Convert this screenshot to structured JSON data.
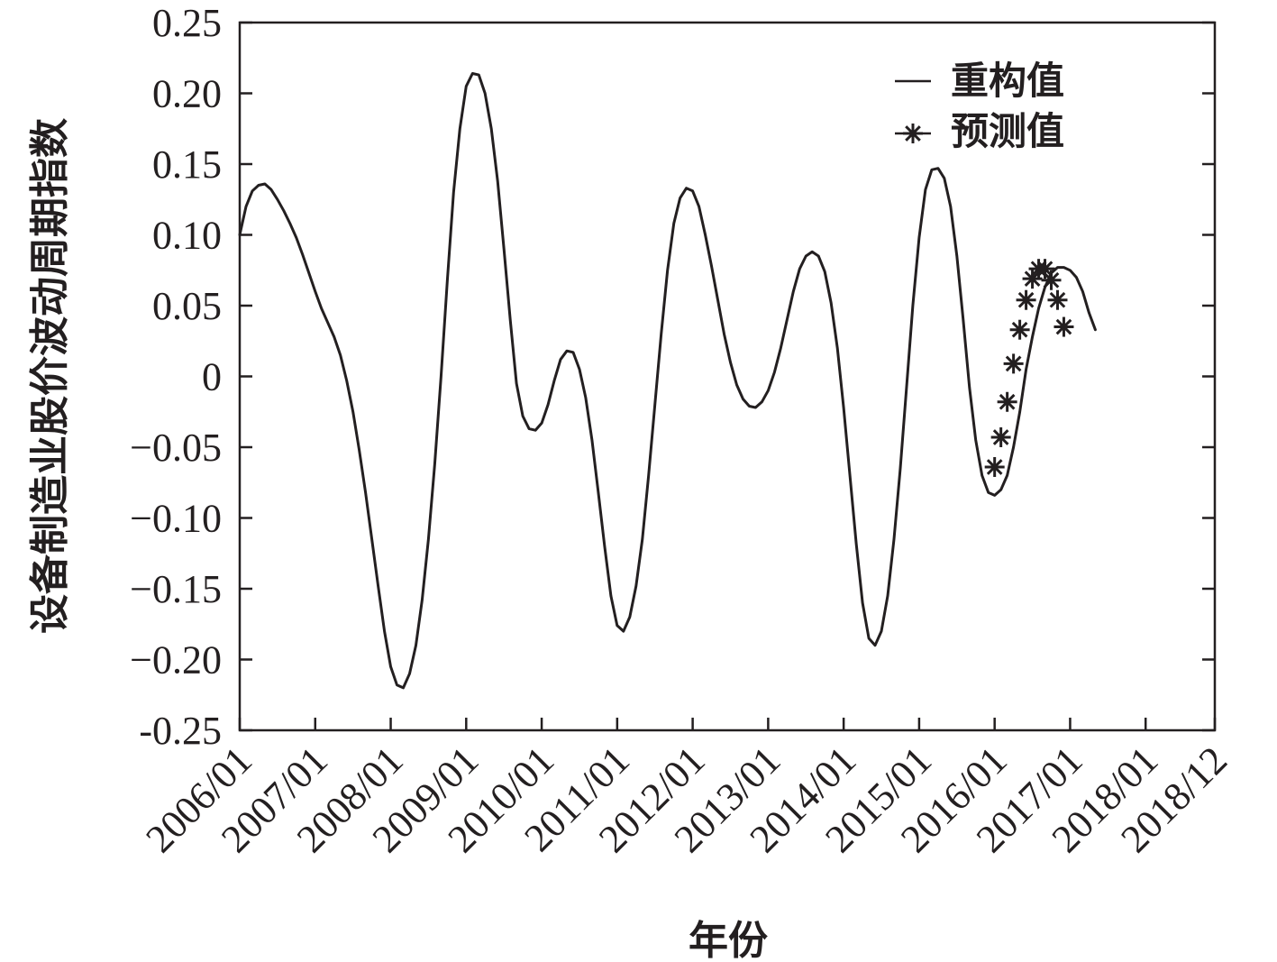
{
  "chart_data": {
    "type": "line",
    "xlabel": "年份",
    "ylabel": "设备制造业股价波动周期指数",
    "xlim": [
      "2006/01",
      "2018/12"
    ],
    "ylim": [
      -0.25,
      0.25
    ],
    "yticks": [
      0.25,
      0.2,
      0.15,
      0.1,
      0.05,
      0,
      -0.05,
      -0.1,
      -0.15,
      -0.2,
      -0.25
    ],
    "ytick_labels": [
      "0.25",
      "0.20",
      "0.15",
      "0.10",
      "0.05",
      "0",
      "−0.05",
      "−0.10",
      "−0.15",
      "−0.20",
      "-0.25"
    ],
    "xtick_labels": [
      "2006/01",
      "2007/01",
      "2008/01",
      "2009/01",
      "2010/01",
      "2011/01",
      "2012/01",
      "2013/01",
      "2014/01",
      "2015/01",
      "2016/01",
      "2017/01",
      "2018/01",
      "2018/12"
    ],
    "grid": false,
    "legend": {
      "position": "top-right",
      "entries": [
        "重构值",
        "预测值"
      ]
    },
    "series": [
      {
        "name": "重构值",
        "style": "line",
        "points": [
          [
            "2006/01",
            0.1
          ],
          [
            "2006/02",
            0.12
          ],
          [
            "2006/03",
            0.131
          ],
          [
            "2006/04",
            0.135
          ],
          [
            "2006/05",
            0.136
          ],
          [
            "2006/06",
            0.132
          ],
          [
            "2006/07",
            0.125
          ],
          [
            "2006/08",
            0.117
          ],
          [
            "2006/09",
            0.108
          ],
          [
            "2006/10",
            0.098
          ],
          [
            "2006/11",
            0.086
          ],
          [
            "2006/12",
            0.073
          ],
          [
            "2007/01",
            0.06
          ],
          [
            "2007/02",
            0.048
          ],
          [
            "2007/03",
            0.038
          ],
          [
            "2007/04",
            0.028
          ],
          [
            "2007/05",
            0.015
          ],
          [
            "2007/06",
            -0.003
          ],
          [
            "2007/07",
            -0.025
          ],
          [
            "2007/08",
            -0.052
          ],
          [
            "2007/09",
            -0.082
          ],
          [
            "2007/10",
            -0.115
          ],
          [
            "2007/11",
            -0.148
          ],
          [
            "2007/12",
            -0.18
          ],
          [
            "2008/01",
            -0.205
          ],
          [
            "2008/02",
            -0.218
          ],
          [
            "2008/03",
            -0.22
          ],
          [
            "2008/04",
            -0.21
          ],
          [
            "2008/05",
            -0.19
          ],
          [
            "2008/06",
            -0.158
          ],
          [
            "2008/07",
            -0.115
          ],
          [
            "2008/08",
            -0.062
          ],
          [
            "2008/09",
            0.0
          ],
          [
            "2008/10",
            0.068
          ],
          [
            "2008/11",
            0.13
          ],
          [
            "2008/12",
            0.175
          ],
          [
            "2009/01",
            0.205
          ],
          [
            "2009/02",
            0.214
          ],
          [
            "2009/03",
            0.213
          ],
          [
            "2009/04",
            0.2
          ],
          [
            "2009/05",
            0.175
          ],
          [
            "2009/06",
            0.138
          ],
          [
            "2009/07",
            0.09
          ],
          [
            "2009/08",
            0.04
          ],
          [
            "2009/09",
            -0.005
          ],
          [
            "2009/10",
            -0.028
          ],
          [
            "2009/11",
            -0.037
          ],
          [
            "2009/12",
            -0.038
          ],
          [
            "2010/01",
            -0.033
          ],
          [
            "2010/02",
            -0.02
          ],
          [
            "2010/03",
            -0.003
          ],
          [
            "2010/04",
            0.012
          ],
          [
            "2010/05",
            0.018
          ],
          [
            "2010/06",
            0.017
          ],
          [
            "2010/07",
            0.005
          ],
          [
            "2010/08",
            -0.015
          ],
          [
            "2010/09",
            -0.045
          ],
          [
            "2010/10",
            -0.082
          ],
          [
            "2010/11",
            -0.12
          ],
          [
            "2010/12",
            -0.155
          ],
          [
            "2011/01",
            -0.176
          ],
          [
            "2011/02",
            -0.18
          ],
          [
            "2011/03",
            -0.17
          ],
          [
            "2011/04",
            -0.148
          ],
          [
            "2011/05",
            -0.115
          ],
          [
            "2011/06",
            -0.07
          ],
          [
            "2011/07",
            -0.02
          ],
          [
            "2011/08",
            0.03
          ],
          [
            "2011/09",
            0.075
          ],
          [
            "2011/10",
            0.108
          ],
          [
            "2011/11",
            0.126
          ],
          [
            "2011/12",
            0.133
          ],
          [
            "2012/01",
            0.131
          ],
          [
            "2012/02",
            0.12
          ],
          [
            "2012/03",
            0.1
          ],
          [
            "2012/04",
            0.078
          ],
          [
            "2012/05",
            0.054
          ],
          [
            "2012/06",
            0.03
          ],
          [
            "2012/07",
            0.01
          ],
          [
            "2012/08",
            -0.006
          ],
          [
            "2012/09",
            -0.016
          ],
          [
            "2012/10",
            -0.021
          ],
          [
            "2012/11",
            -0.022
          ],
          [
            "2012/12",
            -0.018
          ],
          [
            "2013/01",
            -0.01
          ],
          [
            "2013/02",
            0.003
          ],
          [
            "2013/03",
            0.02
          ],
          [
            "2013/04",
            0.04
          ],
          [
            "2013/05",
            0.06
          ],
          [
            "2013/06",
            0.076
          ],
          [
            "2013/07",
            0.085
          ],
          [
            "2013/08",
            0.088
          ],
          [
            "2013/09",
            0.085
          ],
          [
            "2013/10",
            0.074
          ],
          [
            "2013/11",
            0.052
          ],
          [
            "2013/12",
            0.02
          ],
          [
            "2014/01",
            -0.022
          ],
          [
            "2014/02",
            -0.07
          ],
          [
            "2014/03",
            -0.118
          ],
          [
            "2014/04",
            -0.16
          ],
          [
            "2014/05",
            -0.185
          ],
          [
            "2014/06",
            -0.19
          ],
          [
            "2014/07",
            -0.18
          ],
          [
            "2014/08",
            -0.155
          ],
          [
            "2014/09",
            -0.115
          ],
          [
            "2014/10",
            -0.065
          ],
          [
            "2014/11",
            -0.008
          ],
          [
            "2014/12",
            0.05
          ],
          [
            "2015/01",
            0.098
          ],
          [
            "2015/02",
            0.132
          ],
          [
            "2015/03",
            0.146
          ],
          [
            "2015/04",
            0.147
          ],
          [
            "2015/05",
            0.14
          ],
          [
            "2015/06",
            0.12
          ],
          [
            "2015/07",
            0.085
          ],
          [
            "2015/08",
            0.04
          ],
          [
            "2015/09",
            -0.008
          ],
          [
            "2015/10",
            -0.045
          ],
          [
            "2015/11",
            -0.07
          ],
          [
            "2015/12",
            -0.082
          ],
          [
            "2016/01",
            -0.084
          ],
          [
            "2016/02",
            -0.08
          ],
          [
            "2016/03",
            -0.07
          ],
          [
            "2016/04",
            -0.05
          ],
          [
            "2016/05",
            -0.025
          ],
          [
            "2016/06",
            0.005
          ],
          [
            "2016/07",
            0.028
          ],
          [
            "2016/08",
            0.048
          ],
          [
            "2016/09",
            0.063
          ],
          [
            "2016/10",
            0.073
          ],
          [
            "2016/11",
            0.077
          ],
          [
            "2016/12",
            0.077
          ],
          [
            "2017/01",
            0.075
          ],
          [
            "2017/02",
            0.07
          ],
          [
            "2017/03",
            0.06
          ],
          [
            "2017/04",
            0.045
          ],
          [
            "2017/05",
            0.033
          ]
        ]
      },
      {
        "name": "预测值",
        "style": "marker",
        "points": [
          [
            "2016/01",
            -0.064
          ],
          [
            "2016/02",
            -0.043
          ],
          [
            "2016/03",
            -0.018
          ],
          [
            "2016/04",
            0.009
          ],
          [
            "2016/05",
            0.033
          ],
          [
            "2016/06",
            0.054
          ],
          [
            "2016/07",
            0.069
          ],
          [
            "2016/08",
            0.076
          ],
          [
            "2016/09",
            0.076
          ],
          [
            "2016/10",
            0.068
          ],
          [
            "2016/11",
            0.054
          ],
          [
            "2016/12",
            0.035
          ]
        ]
      }
    ]
  }
}
